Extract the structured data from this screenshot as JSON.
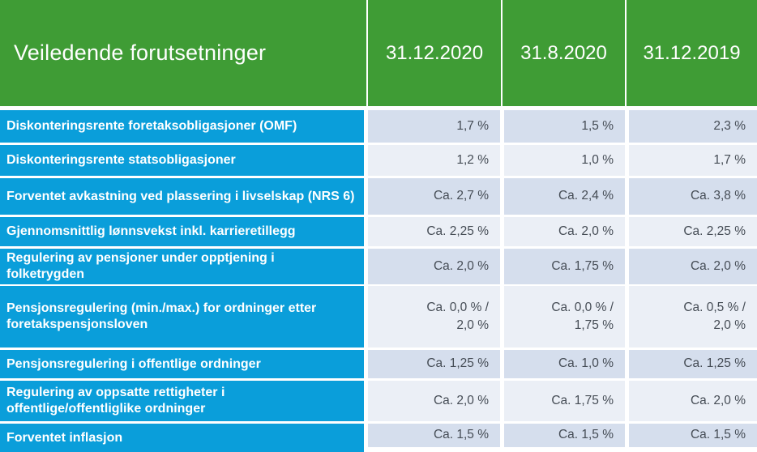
{
  "table": {
    "title": "Veiledende forutsetninger",
    "columns": [
      "31.12.2020",
      "31.8.2020",
      "31.12.2019"
    ],
    "rows": [
      {
        "label": "Diskonteringsrente foretaksobligasjoner (OMF)",
        "values": [
          "1,7 %",
          "1,5 %",
          "2,3 %"
        ]
      },
      {
        "label": "Diskonteringsrente statsobligasjoner",
        "values": [
          "1,2 %",
          "1,0 %",
          "1,7 %"
        ]
      },
      {
        "label": "Forventet avkastning ved plassering i livselskap (NRS 6)",
        "values": [
          "Ca. 2,7 %",
          "Ca. 2,4 %",
          "Ca. 3,8 %"
        ]
      },
      {
        "label": "Gjennomsnittlig lønnsvekst inkl. karrieretillegg",
        "values": [
          "Ca. 2,25 %",
          "Ca. 2,0 %",
          "Ca. 2,25 %"
        ]
      },
      {
        "label": "Regulering av pensjoner under opptjening i folketrygden",
        "values": [
          "Ca. 2,0 %",
          "Ca. 1,75 %",
          "Ca. 2,0 %"
        ]
      },
      {
        "label": "Pensjonsregulering (min./max.) for ordninger etter foretakspensjonsloven",
        "values": [
          "Ca. 0,0 % /\n2,0 %",
          "Ca. 0,0 % /\n1,75 %",
          "Ca. 0,5 % /\n2,0 %"
        ]
      },
      {
        "label": "Pensjonsregulering i offentlige ordninger",
        "values": [
          "Ca. 1,25 %",
          "Ca. 1,0 %",
          "Ca. 1,25 %"
        ]
      },
      {
        "label": "Regulering av oppsatte rettigheter i offentlige/offentliglike ordninger",
        "values": [
          "Ca. 2,0 %",
          "Ca. 1,75 %",
          "Ca. 2,0 %"
        ]
      },
      {
        "label": "Forventet inflasjon",
        "values": [
          "Ca. 1,5 %",
          "Ca. 1,5 %",
          "Ca. 1,5 %"
        ]
      }
    ],
    "colors": {
      "header_green": "#3F9C35",
      "label_blue": "#0A9EDA",
      "band_dark": "#D5DEED",
      "band_light": "#EBEFF6",
      "value_text": "#454C55"
    }
  }
}
